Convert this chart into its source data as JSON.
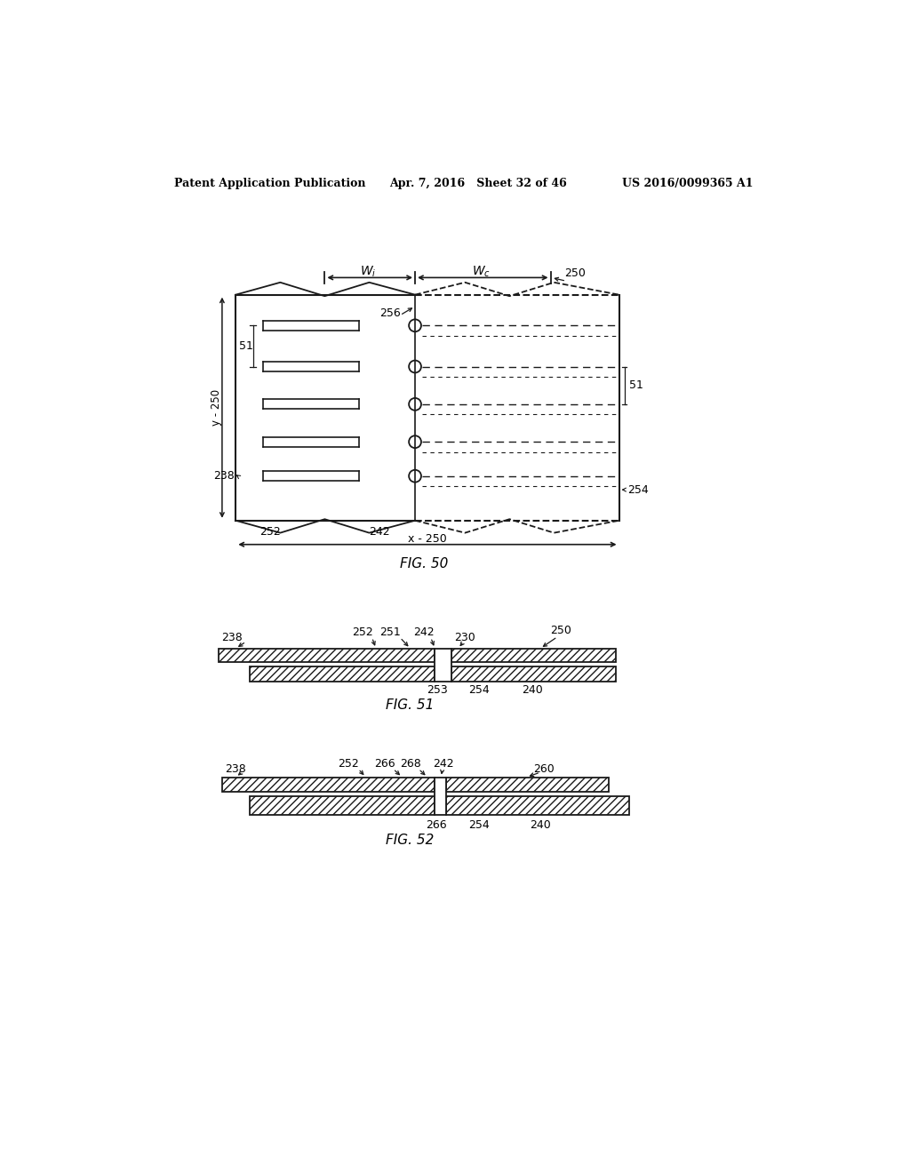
{
  "header_left": "Patent Application Publication",
  "header_mid": "Apr. 7, 2016   Sheet 32 of 46",
  "header_right": "US 2016/0099365 A1",
  "bg_color": "#ffffff",
  "text_color": "#000000",
  "line_color": "#1a1a1a"
}
